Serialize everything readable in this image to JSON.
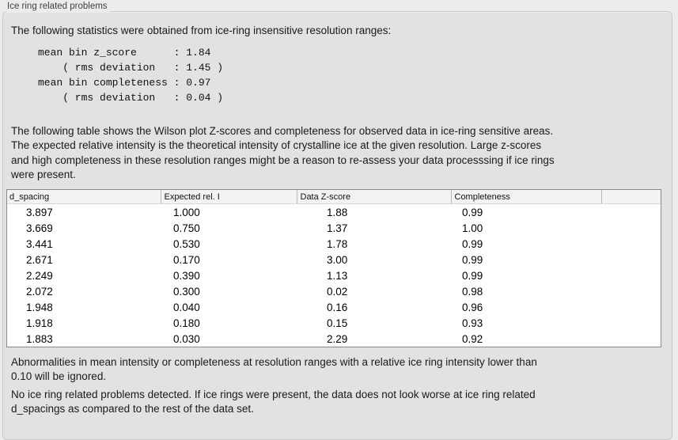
{
  "panel": {
    "title": "Ice ring related problems"
  },
  "intro": "The following statistics were obtained from ice-ring insensitive resolution ranges:",
  "stats_block": "mean bin z_score      : 1.84\n    ( rms deviation   : 1.45 )\nmean bin completeness : 0.97\n    ( rms deviation   : 0.04 )",
  "stats": {
    "mean_bin_z_score": "1.84",
    "z_score_rms_deviation": "1.45",
    "mean_bin_completeness": "0.97",
    "completeness_rms_deviation": "0.04"
  },
  "table_intro": "The following table shows the Wilson plot Z-scores and completeness for observed data in ice-ring sensitive areas.\nThe expected relative intensity is the theoretical intensity of crystalline ice at the given resolution. Large z-scores\nand high completeness in these resolution ranges might be a reason to re-assess your data processsing if ice rings\nwere present.",
  "table": {
    "columns": [
      "d_spacing",
      "Expected rel. I",
      "Data Z-score",
      "Completeness"
    ],
    "rows": [
      [
        "3.897",
        "1.000",
        "1.88",
        "0.99"
      ],
      [
        "3.669",
        "0.750",
        "1.37",
        "1.00"
      ],
      [
        "3.441",
        "0.530",
        "1.78",
        "0.99"
      ],
      [
        "2.671",
        "0.170",
        "3.00",
        "0.99"
      ],
      [
        "2.249",
        "0.390",
        "1.13",
        "0.99"
      ],
      [
        "2.072",
        "0.300",
        "0.02",
        "0.98"
      ],
      [
        "1.948",
        "0.040",
        "0.16",
        "0.96"
      ],
      [
        "1.918",
        "0.180",
        "0.15",
        "0.93"
      ],
      [
        "1.883",
        "0.030",
        "2.29",
        "0.92"
      ]
    ]
  },
  "note_ignore": "Abnormalities in mean intensity or completeness at resolution ranges with a relative ice ring intensity lower than\n0.10 will be ignored.",
  "conclusion": "No ice ring related problems detected. If ice rings were present, the data does not look worse at ice ring related\nd_spacings as compared to the rest of the data set.",
  "colors": {
    "page_bg": "#ececec",
    "panel_bg": "#e2e2e2",
    "table_border": "#8a8a8a",
    "header_bg": "#f3f3f3",
    "text": "#1a1a1a"
  }
}
